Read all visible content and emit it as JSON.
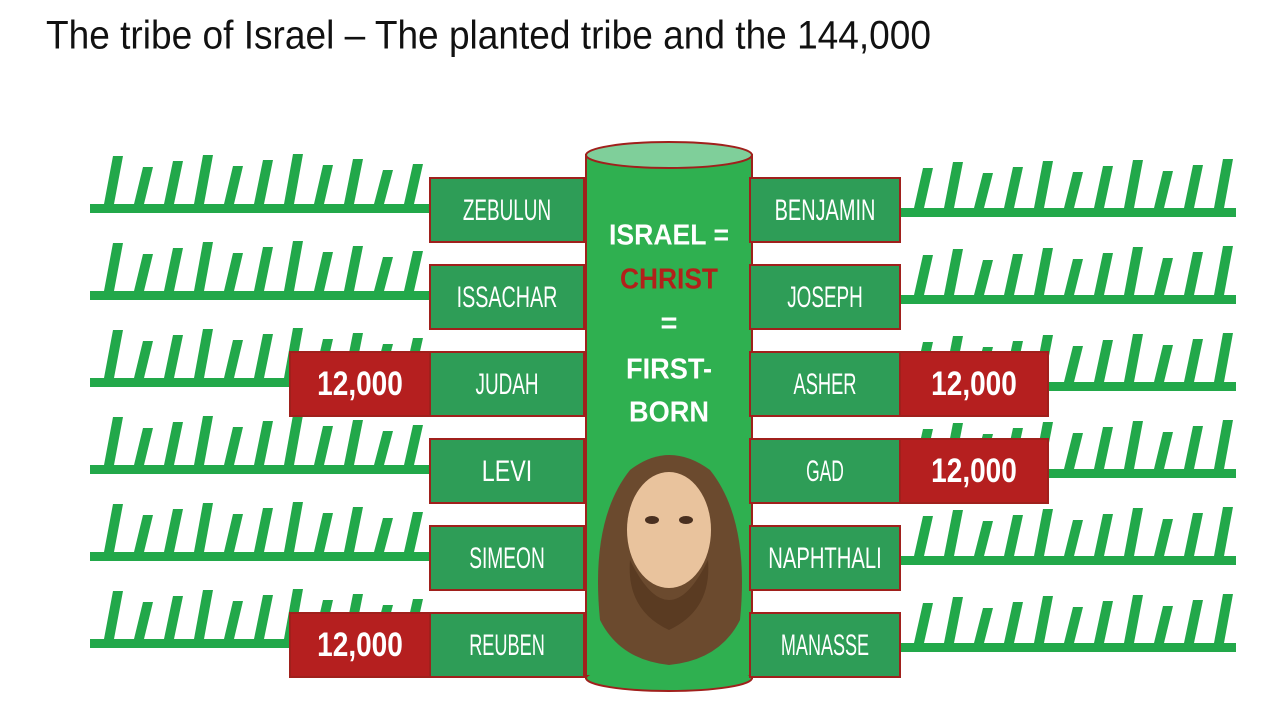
{
  "title": "The tribe of Israel – The planted tribe and the 144,000",
  "left_tribes": [
    {
      "name": "ZEBULUN"
    },
    {
      "name": "ISSACHAR"
    },
    {
      "name": "JUDAH",
      "count": "12,000"
    },
    {
      "name": "LEVI"
    },
    {
      "name": "SIMEON"
    },
    {
      "name": "REUBEN",
      "count": "12,000"
    }
  ],
  "right_tribes": [
    {
      "name": "BENJAMIN"
    },
    {
      "name": "JOSEPH"
    },
    {
      "name": "ASHER",
      "count": "12,000"
    },
    {
      "name": "GAD",
      "count": "12,000"
    },
    {
      "name": "NAPHTHALI"
    },
    {
      "name": "MANASSE"
    }
  ],
  "center": {
    "line1": "ISRAEL =",
    "line2": "CHRIST",
    "line3": "=",
    "line4": "FIRST-",
    "line5": "BORN"
  }
}
